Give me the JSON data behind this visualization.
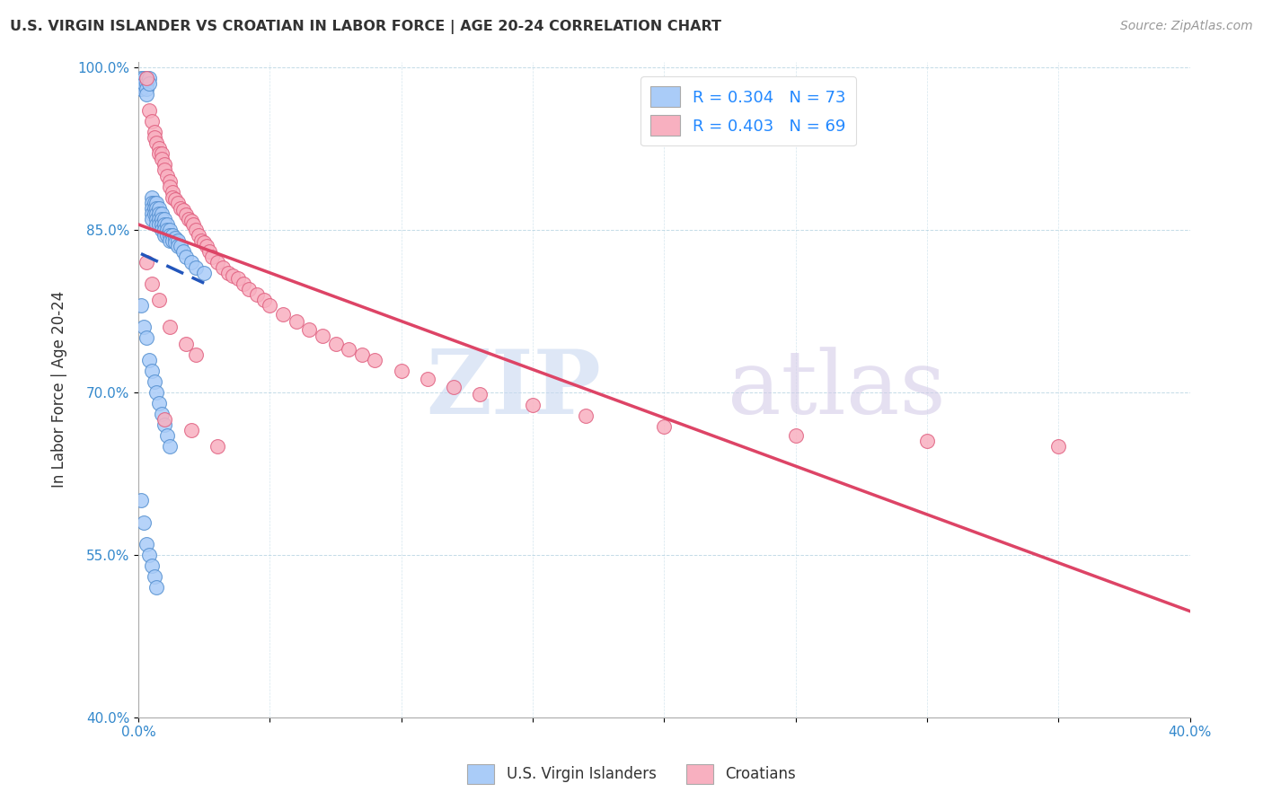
{
  "title": "U.S. VIRGIN ISLANDER VS CROATIAN IN LABOR FORCE | AGE 20-24 CORRELATION CHART",
  "source": "Source: ZipAtlas.com",
  "ylabel": "In Labor Force | Age 20-24",
  "xlim": [
    0.0,
    0.4
  ],
  "ylim": [
    0.4,
    1.005
  ],
  "xtick_positions": [
    0.0,
    0.05,
    0.1,
    0.15,
    0.2,
    0.25,
    0.3,
    0.35,
    0.4
  ],
  "xticklabels": [
    "0.0%",
    "",
    "",
    "",
    "",
    "",
    "",
    "",
    "40.0%"
  ],
  "ytick_positions": [
    0.4,
    0.55,
    0.7,
    0.85,
    1.0
  ],
  "yticklabels": [
    "40.0%",
    "55.0%",
    "70.0%",
    "85.0%",
    "100.0%"
  ],
  "blue_R": 0.304,
  "blue_N": 73,
  "pink_R": 0.403,
  "pink_N": 69,
  "blue_color": "#aaccf8",
  "blue_edge": "#5590d0",
  "pink_color": "#f8b0c0",
  "pink_edge": "#e06080",
  "blue_line_color": "#2255bb",
  "pink_line_color": "#dd4466",
  "legend_R_color": "#2288ff",
  "blue_x": [
    0.001,
    0.001,
    0.001,
    0.002,
    0.002,
    0.003,
    0.003,
    0.003,
    0.003,
    0.004,
    0.004,
    0.005,
    0.005,
    0.005,
    0.005,
    0.005,
    0.006,
    0.006,
    0.006,
    0.007,
    0.007,
    0.007,
    0.007,
    0.007,
    0.008,
    0.008,
    0.008,
    0.008,
    0.009,
    0.009,
    0.009,
    0.009,
    0.01,
    0.01,
    0.01,
    0.01,
    0.011,
    0.011,
    0.011,
    0.012,
    0.012,
    0.012,
    0.013,
    0.013,
    0.014,
    0.014,
    0.015,
    0.015,
    0.016,
    0.017,
    0.018,
    0.02,
    0.022,
    0.025,
    0.001,
    0.002,
    0.003,
    0.004,
    0.005,
    0.006,
    0.007,
    0.008,
    0.009,
    0.01,
    0.011,
    0.012,
    0.001,
    0.002,
    0.003,
    0.004,
    0.005,
    0.006,
    0.007
  ],
  "blue_y": [
    0.99,
    0.985,
    0.98,
    0.99,
    0.985,
    0.99,
    0.985,
    0.98,
    0.975,
    0.99,
    0.985,
    0.88,
    0.875,
    0.87,
    0.865,
    0.86,
    0.875,
    0.87,
    0.865,
    0.875,
    0.87,
    0.865,
    0.86,
    0.855,
    0.87,
    0.865,
    0.86,
    0.855,
    0.865,
    0.86,
    0.855,
    0.85,
    0.86,
    0.855,
    0.85,
    0.845,
    0.855,
    0.85,
    0.845,
    0.85,
    0.845,
    0.84,
    0.845,
    0.84,
    0.842,
    0.838,
    0.84,
    0.835,
    0.835,
    0.83,
    0.825,
    0.82,
    0.815,
    0.81,
    0.78,
    0.76,
    0.75,
    0.73,
    0.72,
    0.71,
    0.7,
    0.69,
    0.68,
    0.67,
    0.66,
    0.65,
    0.6,
    0.58,
    0.56,
    0.55,
    0.54,
    0.53,
    0.52
  ],
  "pink_x": [
    0.003,
    0.004,
    0.005,
    0.006,
    0.006,
    0.007,
    0.008,
    0.008,
    0.009,
    0.009,
    0.01,
    0.01,
    0.011,
    0.012,
    0.012,
    0.013,
    0.013,
    0.014,
    0.015,
    0.016,
    0.017,
    0.018,
    0.019,
    0.02,
    0.021,
    0.022,
    0.023,
    0.024,
    0.025,
    0.026,
    0.027,
    0.028,
    0.03,
    0.032,
    0.034,
    0.036,
    0.038,
    0.04,
    0.042,
    0.045,
    0.048,
    0.05,
    0.055,
    0.06,
    0.065,
    0.07,
    0.075,
    0.08,
    0.085,
    0.09,
    0.1,
    0.11,
    0.12,
    0.13,
    0.15,
    0.17,
    0.2,
    0.25,
    0.3,
    0.35,
    0.003,
    0.005,
    0.008,
    0.012,
    0.018,
    0.022,
    0.01,
    0.02,
    0.03
  ],
  "pink_y": [
    0.99,
    0.96,
    0.95,
    0.94,
    0.935,
    0.93,
    0.925,
    0.92,
    0.92,
    0.915,
    0.91,
    0.905,
    0.9,
    0.895,
    0.89,
    0.885,
    0.88,
    0.878,
    0.875,
    0.87,
    0.868,
    0.864,
    0.86,
    0.858,
    0.855,
    0.85,
    0.845,
    0.84,
    0.838,
    0.835,
    0.83,
    0.825,
    0.82,
    0.815,
    0.81,
    0.808,
    0.805,
    0.8,
    0.795,
    0.79,
    0.785,
    0.78,
    0.772,
    0.765,
    0.758,
    0.752,
    0.745,
    0.74,
    0.735,
    0.73,
    0.72,
    0.712,
    0.705,
    0.698,
    0.688,
    0.678,
    0.668,
    0.66,
    0.655,
    0.65,
    0.82,
    0.8,
    0.785,
    0.76,
    0.745,
    0.735,
    0.675,
    0.665,
    0.65
  ]
}
